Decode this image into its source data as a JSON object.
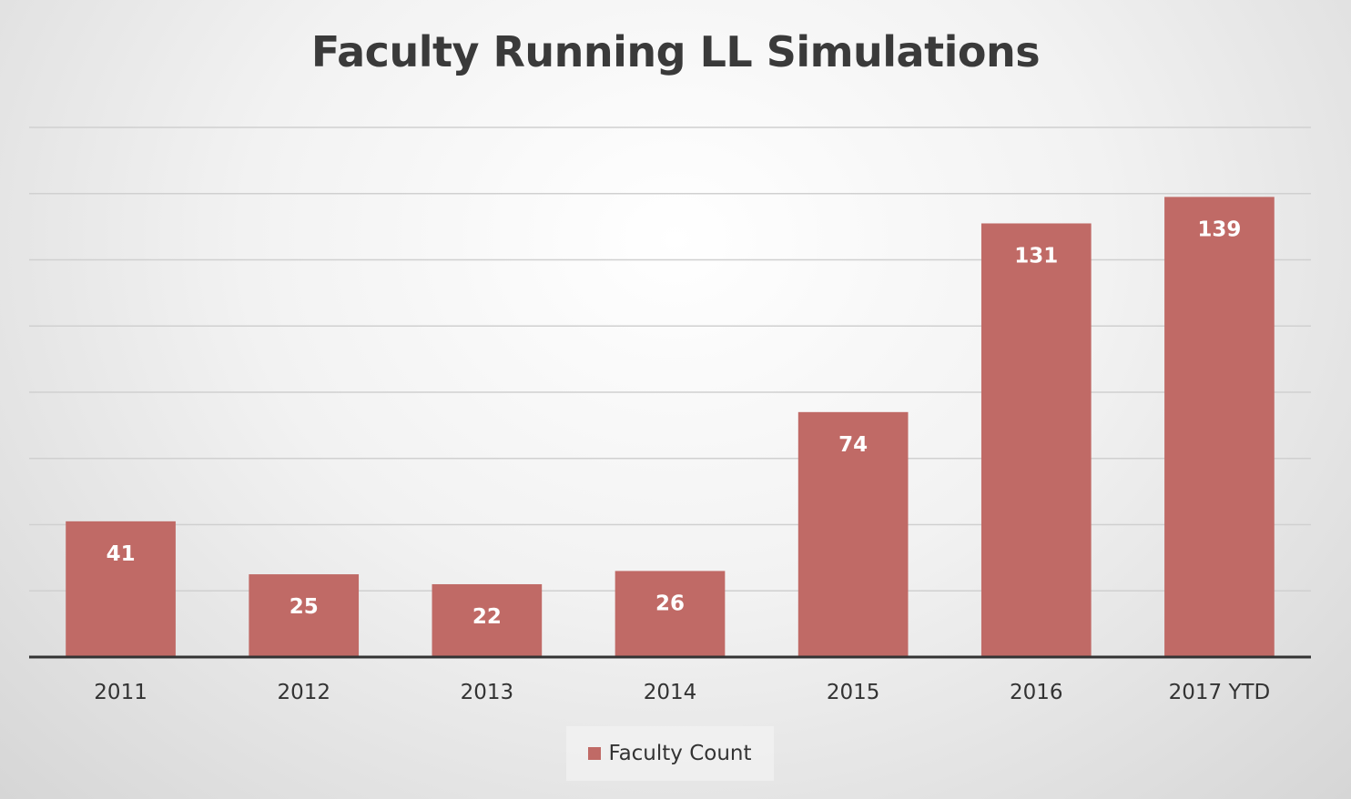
{
  "chart_data": {
    "type": "bar",
    "title": "Faculty Running LL Simulations",
    "categories": [
      "2011",
      "2012",
      "2013",
      "2014",
      "2015",
      "2016",
      "2017 YTD"
    ],
    "series": [
      {
        "name": "Faculty Count",
        "values": [
          41,
          25,
          22,
          26,
          74,
          131,
          139
        ],
        "color": "#c06a66"
      }
    ],
    "data_labels": [
      "41",
      "25",
      "22",
      "26",
      "74",
      "131",
      "139"
    ],
    "ylim": [
      0,
      160
    ],
    "gridline_step": 20,
    "grid": true,
    "legend_position": "bottom",
    "xlabel": "",
    "ylabel": ""
  }
}
